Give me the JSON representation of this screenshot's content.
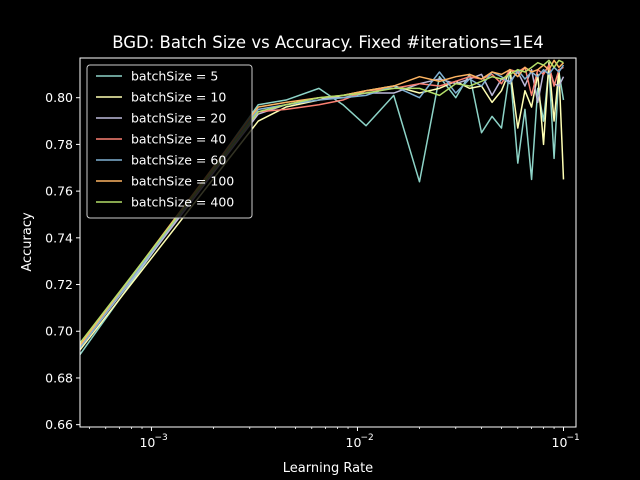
{
  "chart_data": {
    "type": "line",
    "title": "BGD: Batch Size vs Accuracy. Fixed #iterations=1E4",
    "xlabel": "Learning Rate",
    "ylabel": "Accuracy",
    "xscale": "log",
    "xlim": [
      0.00045,
      0.115
    ],
    "ylim": [
      0.659,
      0.817
    ],
    "x_ticks": [
      {
        "value": 0.001,
        "label": "10",
        "exp": "−3"
      },
      {
        "value": 0.01,
        "label": "10",
        "exp": "−2"
      },
      {
        "value": 0.1,
        "label": "10",
        "exp": "−1"
      }
    ],
    "y_ticks": [
      0.66,
      0.68,
      0.7,
      0.72,
      0.74,
      0.76,
      0.78,
      0.8
    ],
    "y_tick_labels": [
      "0.66",
      "0.68",
      "0.70",
      "0.72",
      "0.74",
      "0.76",
      "0.78",
      "0.80"
    ],
    "grid": false,
    "legend_position": "top-left",
    "series": [
      {
        "name": "batchSize = 5",
        "color": "#8dd3c7",
        "x": [
          0.00045,
          0.0033,
          0.0045,
          0.0065,
          0.0085,
          0.011,
          0.015,
          0.02,
          0.025,
          0.03,
          0.035,
          0.04,
          0.045,
          0.05,
          0.055,
          0.06,
          0.065,
          0.07,
          0.075,
          0.08,
          0.085,
          0.09,
          0.095,
          0.1
        ],
        "y": [
          0.69,
          0.797,
          0.799,
          0.804,
          0.797,
          0.788,
          0.801,
          0.764,
          0.809,
          0.8,
          0.81,
          0.785,
          0.792,
          0.787,
          0.812,
          0.772,
          0.795,
          0.765,
          0.804,
          0.79,
          0.813,
          0.774,
          0.811,
          0.799
        ]
      },
      {
        "name": "batchSize = 10",
        "color": "#ffffb3",
        "x": [
          0.00045,
          0.0033,
          0.0045,
          0.0065,
          0.0085,
          0.011,
          0.015,
          0.02,
          0.025,
          0.03,
          0.035,
          0.04,
          0.045,
          0.05,
          0.055,
          0.06,
          0.065,
          0.07,
          0.075,
          0.08,
          0.085,
          0.09,
          0.095,
          0.1
        ],
        "y": [
          0.692,
          0.79,
          0.796,
          0.799,
          0.801,
          0.803,
          0.805,
          0.802,
          0.804,
          0.807,
          0.804,
          0.805,
          0.798,
          0.803,
          0.812,
          0.787,
          0.803,
          0.796,
          0.81,
          0.78,
          0.815,
          0.79,
          0.812,
          0.765
        ]
      },
      {
        "name": "batchSize = 20",
        "color": "#bebada",
        "x": [
          0.00045,
          0.0033,
          0.0045,
          0.0065,
          0.0085,
          0.011,
          0.015,
          0.02,
          0.025,
          0.03,
          0.035,
          0.04,
          0.045,
          0.05,
          0.055,
          0.06,
          0.065,
          0.07,
          0.075,
          0.08,
          0.085,
          0.09,
          0.095,
          0.1
        ],
        "y": [
          0.693,
          0.793,
          0.797,
          0.8,
          0.8,
          0.802,
          0.802,
          0.806,
          0.808,
          0.806,
          0.808,
          0.81,
          0.801,
          0.808,
          0.807,
          0.811,
          0.805,
          0.812,
          0.798,
          0.811,
          0.813,
          0.806,
          0.805,
          0.809
        ]
      },
      {
        "name": "batchSize = 40",
        "color": "#fb8072",
        "x": [
          0.00045,
          0.0033,
          0.0045,
          0.0065,
          0.0085,
          0.011,
          0.015,
          0.02,
          0.025,
          0.03,
          0.035,
          0.04,
          0.045,
          0.05,
          0.055,
          0.06,
          0.065,
          0.07,
          0.075,
          0.08,
          0.085,
          0.09,
          0.095,
          0.1
        ],
        "y": [
          0.694,
          0.794,
          0.795,
          0.797,
          0.799,
          0.803,
          0.804,
          0.806,
          0.805,
          0.807,
          0.809,
          0.808,
          0.81,
          0.806,
          0.812,
          0.811,
          0.813,
          0.801,
          0.812,
          0.81,
          0.814,
          0.805,
          0.812,
          0.813
        ]
      },
      {
        "name": "batchSize = 60",
        "color": "#80b1d3",
        "x": [
          0.00045,
          0.0033,
          0.0045,
          0.0065,
          0.0085,
          0.011,
          0.015,
          0.02,
          0.025,
          0.03,
          0.035,
          0.04,
          0.045,
          0.05,
          0.055,
          0.06,
          0.065,
          0.07,
          0.075,
          0.08,
          0.085,
          0.09,
          0.095,
          0.1
        ],
        "y": [
          0.693,
          0.795,
          0.797,
          0.799,
          0.8,
          0.801,
          0.805,
          0.8,
          0.811,
          0.802,
          0.808,
          0.805,
          0.811,
          0.809,
          0.806,
          0.812,
          0.808,
          0.811,
          0.809,
          0.812,
          0.81,
          0.813,
          0.811,
          0.814
        ]
      },
      {
        "name": "batchSize = 100",
        "color": "#fdb462",
        "x": [
          0.00045,
          0.0033,
          0.0045,
          0.0065,
          0.0085,
          0.011,
          0.015,
          0.02,
          0.025,
          0.03,
          0.035,
          0.04,
          0.045,
          0.05,
          0.055,
          0.06,
          0.065,
          0.07,
          0.075,
          0.08,
          0.085,
          0.09,
          0.095,
          0.1
        ],
        "y": [
          0.694,
          0.796,
          0.798,
          0.8,
          0.801,
          0.803,
          0.805,
          0.809,
          0.807,
          0.809,
          0.81,
          0.808,
          0.811,
          0.81,
          0.812,
          0.809,
          0.813,
          0.811,
          0.812,
          0.814,
          0.812,
          0.816,
          0.813,
          0.815
        ]
      },
      {
        "name": "batchSize = 400",
        "color": "#b3de69",
        "x": [
          0.00045,
          0.0033,
          0.0045,
          0.0065,
          0.0085,
          0.011,
          0.015,
          0.02,
          0.025,
          0.03,
          0.035,
          0.04,
          0.045,
          0.05,
          0.055,
          0.06,
          0.065,
          0.07,
          0.075,
          0.08,
          0.085,
          0.09,
          0.095,
          0.1
        ],
        "y": [
          0.695,
          0.794,
          0.797,
          0.8,
          0.801,
          0.802,
          0.804,
          0.804,
          0.801,
          0.806,
          0.805,
          0.807,
          0.809,
          0.808,
          0.81,
          0.812,
          0.811,
          0.813,
          0.815,
          0.814,
          0.816,
          0.813,
          0.816,
          0.815
        ]
      }
    ]
  }
}
